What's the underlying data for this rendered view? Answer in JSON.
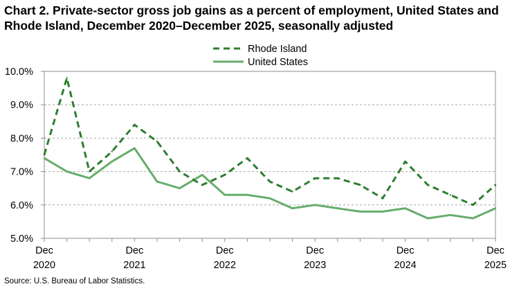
{
  "title": "Chart 2. Private-sector gross job gains as a percent of employment, United States and Rhode Island, December 2020–December 2025, seasonally adjusted",
  "source": "Source: U.S. Bureau of Labor Statistics.",
  "colors": {
    "rhode_island": "#2e7d32",
    "united_states": "#66ad6b",
    "grid": "#a6a6a6"
  },
  "chart_data": {
    "type": "line",
    "x": [
      "Dec 2020",
      "Mar 2021",
      "Jun 2021",
      "Sep 2021",
      "Dec 2021",
      "Mar 2022",
      "Jun 2022",
      "Sep 2022",
      "Dec 2022",
      "Mar 2023",
      "Jun 2023",
      "Sep 2023",
      "Dec 2023",
      "Mar 2024",
      "Jun 2024",
      "Sep 2024",
      "Dec 2024",
      "Mar 2025",
      "Jun 2025",
      "Sep 2025",
      "Dec 2025"
    ],
    "x_tick_labels": [
      {
        "line1": "Dec",
        "line2": "2020",
        "index": 0
      },
      {
        "line1": "Dec",
        "line2": "2021",
        "index": 4
      },
      {
        "line1": "Dec",
        "line2": "2022",
        "index": 8
      },
      {
        "line1": "Dec",
        "line2": "2023",
        "index": 12
      },
      {
        "line1": "Dec",
        "line2": "2024",
        "index": 16
      },
      {
        "line1": "Dec",
        "line2": "2025",
        "index": 20
      }
    ],
    "y_tick_labels": [
      "5.0%",
      "6.0%",
      "7.0%",
      "8.0%",
      "9.0%",
      "10.0%"
    ],
    "y_ticks": [
      5,
      6,
      7,
      8,
      9,
      10
    ],
    "ylim": [
      5,
      10
    ],
    "grid": true,
    "legend_position": "top-center",
    "series": [
      {
        "name": "Rhode Island",
        "style": "dashed",
        "values": [
          7.5,
          9.8,
          7.0,
          7.6,
          8.4,
          7.9,
          7.0,
          6.6,
          6.9,
          7.4,
          6.7,
          6.4,
          6.8,
          6.8,
          6.6,
          6.2,
          7.3,
          6.6,
          6.3,
          6.0,
          6.6
        ]
      },
      {
        "name": "United States",
        "style": "solid",
        "values": [
          7.4,
          7.0,
          6.8,
          7.3,
          7.7,
          6.7,
          6.5,
          6.9,
          6.3,
          6.3,
          6.2,
          5.9,
          6.0,
          5.9,
          5.8,
          5.8,
          5.9,
          5.6,
          5.7,
          5.6,
          5.9
        ]
      }
    ]
  }
}
